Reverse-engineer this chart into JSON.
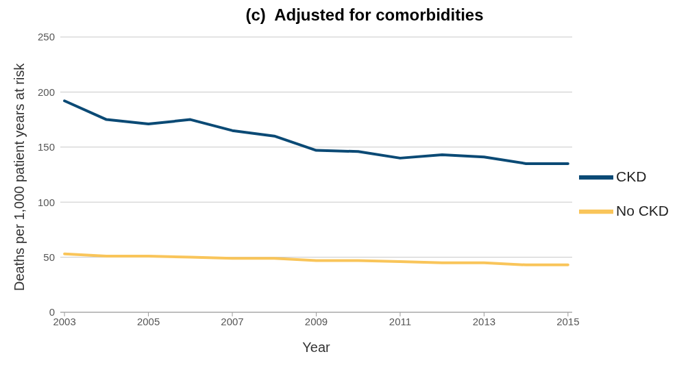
{
  "chart_data": {
    "type": "line",
    "title": "(c)  Adjusted for comorbidities",
    "xlabel": "Year",
    "ylabel": "Deaths per 1,000 patient years at risk",
    "x": [
      2003,
      2004,
      2005,
      2006,
      2007,
      2008,
      2009,
      2010,
      2011,
      2012,
      2013,
      2014,
      2015
    ],
    "series": [
      {
        "name": "CKD",
        "color": "#0b4a75",
        "values": [
          192,
          175,
          171,
          175,
          165,
          160,
          147,
          146,
          140,
          143,
          141,
          135,
          135
        ]
      },
      {
        "name": "No CKD",
        "color": "#f9c55a",
        "values": [
          53,
          51,
          51,
          50,
          49,
          49,
          47,
          47,
          46,
          45,
          45,
          43,
          43
        ]
      }
    ],
    "xlim": [
      2002.9,
      2015.1
    ],
    "xticks": [
      2003,
      2005,
      2007,
      2009,
      2011,
      2013,
      2015
    ],
    "ylim": [
      0,
      250
    ],
    "yticks": [
      0,
      50,
      100,
      150,
      200,
      250
    ],
    "grid": "y",
    "legend": "right",
    "marker": "none",
    "line_style": "solid"
  }
}
